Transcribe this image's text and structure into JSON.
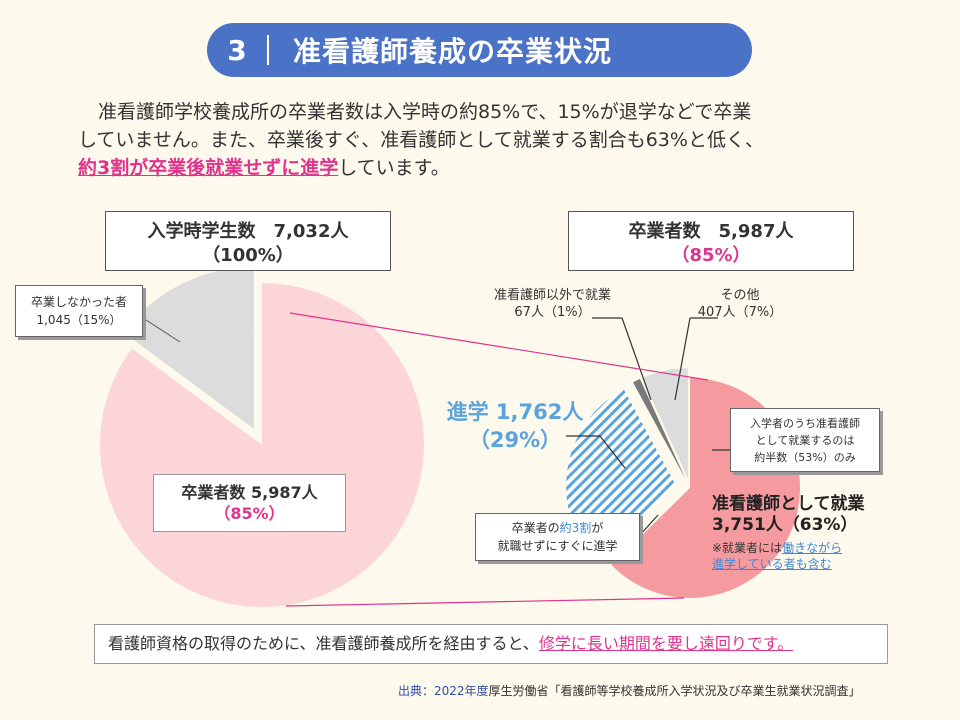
{
  "header": {
    "number": "3",
    "title": "准看護師養成の卒業状況"
  },
  "intro": {
    "line1": "准看護師学校養成所の卒業者数は入学時の約85%で、15%が退学などで卒業",
    "line2": "していません。また、卒業後すぐ、准看護師として就業する割合も63%と低く、",
    "line3_highlight": "約3割が卒業後就業せずに進学",
    "line3_rest": "しています。"
  },
  "left_panel": {
    "box_line1": "入学時学生数　7,032人",
    "box_line2": "（100%）",
    "nongrad_line1": "卒業しなかった者",
    "nongrad_line2": "1,045（15%）",
    "grads_line1": "卒業者数 5,987人",
    "grads_line2": "（85%）"
  },
  "right_panel": {
    "box_line1": "卒業者数　5,987人",
    "box_line2": "（85%）",
    "other_emp_line1": "准看護師以外で就業",
    "other_emp_line2": "67人（1%）",
    "others_line1": "その他",
    "others_line2": "407人（7%）",
    "adv_line1": "進学 1,762人",
    "adv_line2": "（29%）",
    "nurse_note_line1": "入学者のうち准看護師",
    "nurse_note_line2": "として就業するのは",
    "nurse_note_line3": "約半数（53%）のみ",
    "third_line1_a": "卒業者の",
    "third_line1_b": "約3割",
    "third_line1_c": "が",
    "third_line2": "就職せずにすぐに進学",
    "emp_line1": "准看護師として就業",
    "emp_line2": "3,751人（63%）",
    "emp_note_a": "※就業者には",
    "emp_note_b": "働きながら",
    "emp_note_c": "進学している者も含む"
  },
  "conclusion": {
    "text": "看護師資格の取得のために、准看護師養成所を経由すると、",
    "highlight": "修学に長い期間を要し遠回りです。"
  },
  "source": {
    "prefix": "出典：2022年度",
    "text": "厚生労働省「看護師等学校養成所入学状況及び卒業生就業状況調査」"
  },
  "chart_data": [
    {
      "type": "pie",
      "title": "入学時学生数　7,032人",
      "slices": [
        {
          "label": "卒業者数",
          "value": 5987,
          "percent": 85,
          "color": "#fbd5d8"
        },
        {
          "label": "卒業しなかった者",
          "value": 1045,
          "percent": 15,
          "color": "#dcdcdc"
        }
      ]
    },
    {
      "type": "pie",
      "title": "卒業者数　5,987人",
      "slices": [
        {
          "label": "准看護師として就業",
          "value": 3751,
          "percent": 63,
          "color": "#f59b9f"
        },
        {
          "label": "進学",
          "value": 1762,
          "percent": 29,
          "color": "#5aa3dd"
        },
        {
          "label": "准看護師以外で就業",
          "value": 67,
          "percent": 1,
          "color": "#7a7a7a"
        },
        {
          "label": "その他",
          "value": 407,
          "percent": 7,
          "color": "#dcdcdc"
        }
      ]
    }
  ]
}
